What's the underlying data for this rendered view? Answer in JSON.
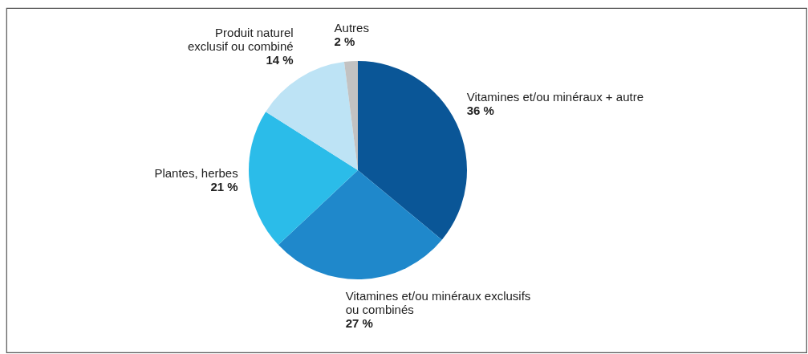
{
  "chart_data": {
    "type": "pie",
    "categories": [
      "Vitamines et/ou minéraux + autre",
      "Vitamines et/ou minéraux exclusifs\nou combinés",
      "Plantes, herbes",
      "Produit naturel\nexclusif ou combiné",
      "Autres"
    ],
    "values": [
      36,
      27,
      21,
      14,
      2
    ],
    "colors": [
      "#0a5697",
      "#1f88cb",
      "#2bbce9",
      "#bde3f5",
      "#c2c2c2"
    ],
    "value_labels": [
      "36 %",
      "27 %",
      "21 %",
      "14 %",
      "2 %"
    ]
  }
}
